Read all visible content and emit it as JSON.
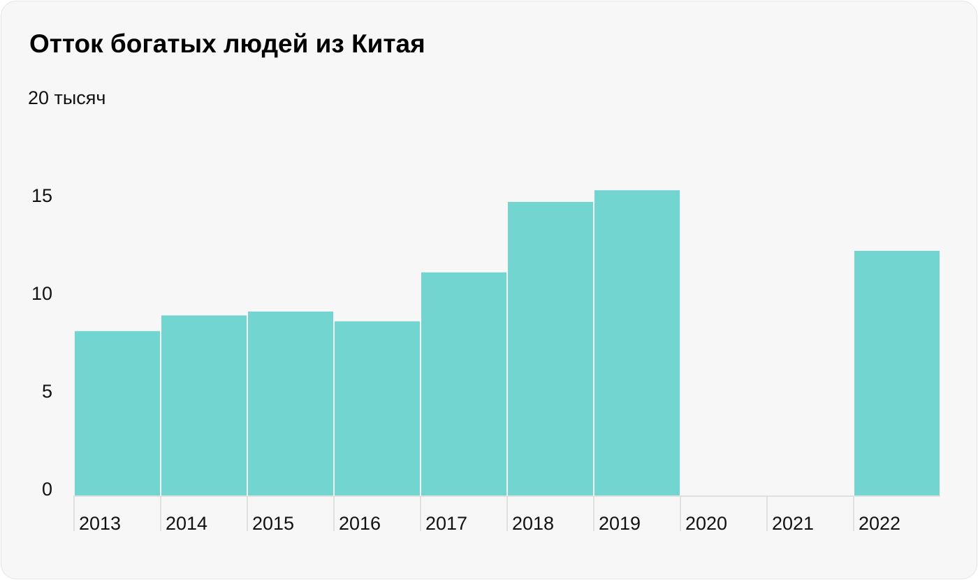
{
  "chart_data": {
    "type": "bar",
    "title": "Отток богатых людей из Китая",
    "unit_label": "20 тысяч",
    "categories": [
      "2013",
      "2014",
      "2015",
      "2016",
      "2017",
      "2018",
      "2019",
      "2020",
      "2021",
      "2022"
    ],
    "values": [
      8.4,
      9.2,
      9.4,
      8.9,
      11.4,
      15.0,
      15.6,
      null,
      null,
      12.5
    ],
    "y_ticks": [
      "0",
      "5",
      "10",
      "15"
    ],
    "ylim": [
      0,
      20
    ],
    "bar_color": "#73d5d0",
    "grid": false
  }
}
